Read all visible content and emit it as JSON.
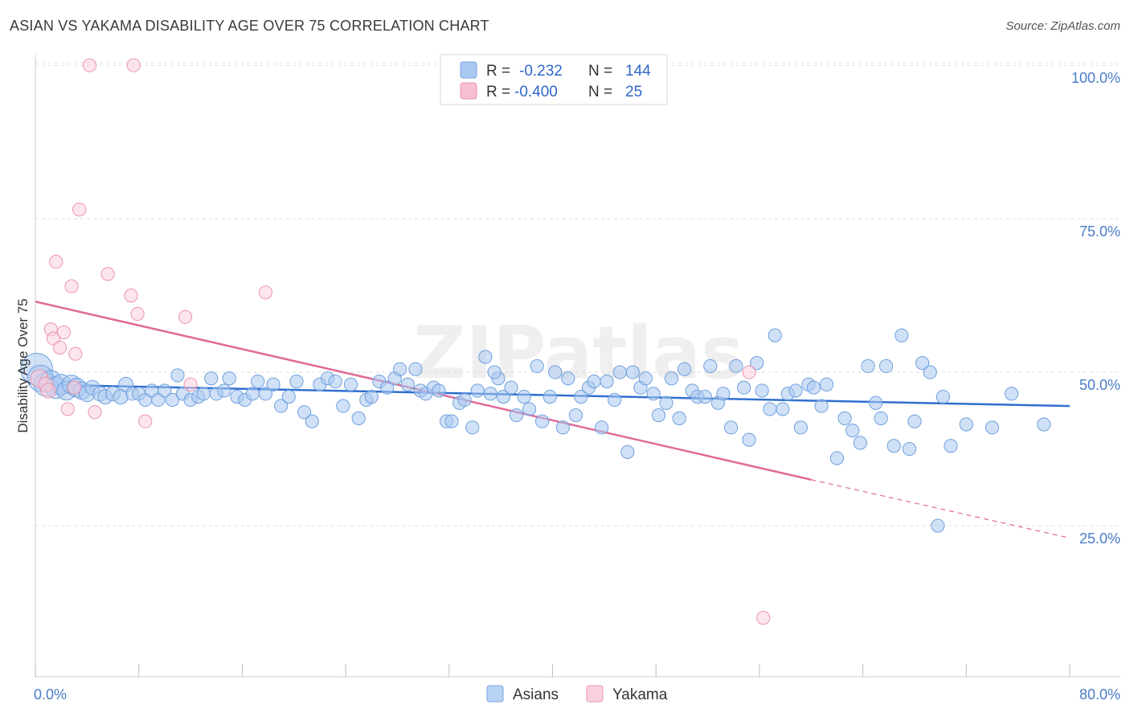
{
  "header": {
    "title": "ASIAN VS YAKAMA DISABILITY AGE OVER 75 CORRELATION CHART",
    "source": "Source: ZipAtlas.com"
  },
  "watermark": "ZIPatlas",
  "legend": {
    "rows": [
      {
        "r_label": "R =",
        "r_value": "-0.232",
        "n_label": "N =",
        "n_value": "144",
        "color": "#a9c8f0",
        "stroke": "#7aa6e0"
      },
      {
        "r_label": "R =",
        "r_value": "-0.400",
        "n_label": "N =",
        "n_value": "25",
        "color": "#f7bfd0",
        "stroke": "#e995b0"
      }
    ]
  },
  "bottom_legend": [
    {
      "label": "Asians",
      "color": "#b9d3f5",
      "stroke": "#7aa6e0"
    },
    {
      "label": "Yakama",
      "color": "#fbd0dd",
      "stroke": "#e995b0"
    }
  ],
  "chart_data": {
    "type": "scatter",
    "title": "ASIAN VS YAKAMA DISABILITY AGE OVER 75 CORRELATION CHART",
    "xlabel": "",
    "ylabel": "Disability Age Over 75",
    "xlim": [
      0,
      80
    ],
    "ylim": [
      0,
      105
    ],
    "x_tick_labels": [
      "0.0%",
      "80.0%"
    ],
    "y_ticks": [
      25,
      50,
      75,
      100
    ],
    "y_tick_labels": [
      "25.0%",
      "50.0%",
      "75.0%",
      "100.0%"
    ],
    "grid": true,
    "series": [
      {
        "name": "Asians",
        "color": "#a9c8f0",
        "stroke": "#6f9fdc",
        "trend": {
          "x0": 0,
          "y0": 48.0,
          "x1": 80,
          "y1": 44.5,
          "color": "#2f6fd0"
        },
        "points": [
          [
            0.1,
            50.5,
            2.2
          ],
          [
            0.4,
            49,
            1.8
          ],
          [
            0.8,
            48,
            1.6
          ],
          [
            1.2,
            48.5,
            1.5
          ],
          [
            1.6,
            47.5,
            1.5
          ],
          [
            2.0,
            48,
            1.4
          ],
          [
            2.4,
            47,
            1.3
          ],
          [
            2.8,
            48,
            1.3
          ],
          [
            3.2,
            47.5,
            1.3
          ],
          [
            3.6,
            47,
            1.2
          ],
          [
            4.0,
            46.5,
            1.1
          ],
          [
            4.4,
            47.5,
            1.0
          ],
          [
            5.0,
            46.5,
            1.0
          ],
          [
            5.4,
            46,
            1.0
          ],
          [
            6.0,
            46.5,
            1.0
          ],
          [
            6.6,
            46,
            1.0
          ],
          [
            7.0,
            48,
            1.0
          ],
          [
            7.5,
            46.5,
            0.9
          ],
          [
            8.0,
            46.5,
            0.9
          ],
          [
            8.5,
            45.5,
            0.9
          ],
          [
            9.0,
            47,
            0.9
          ],
          [
            9.5,
            45.5,
            0.9
          ],
          [
            10.0,
            47,
            0.9
          ],
          [
            10.6,
            45.5,
            0.9
          ],
          [
            11.0,
            49.5,
            0.9
          ],
          [
            11.4,
            46.5,
            0.9
          ],
          [
            12.0,
            45.5,
            0.9
          ],
          [
            12.6,
            46,
            0.9
          ],
          [
            13.0,
            46.5,
            0.9
          ],
          [
            13.6,
            49,
            0.9
          ],
          [
            14.0,
            46.5,
            0.9
          ],
          [
            14.6,
            47,
            0.9
          ],
          [
            15.0,
            49,
            0.9
          ],
          [
            15.6,
            46,
            0.9
          ],
          [
            16.2,
            45.5,
            0.9
          ],
          [
            16.8,
            46.5,
            0.9
          ],
          [
            17.2,
            48.5,
            0.9
          ],
          [
            17.8,
            46.5,
            0.9
          ],
          [
            18.4,
            48,
            0.9
          ],
          [
            19.0,
            44.5,
            0.9
          ],
          [
            19.6,
            46,
            0.9
          ],
          [
            20.2,
            48.5,
            0.9
          ],
          [
            20.8,
            43.5,
            0.9
          ],
          [
            21.4,
            42,
            0.9
          ],
          [
            22.0,
            48,
            0.9
          ],
          [
            22.6,
            49,
            0.9
          ],
          [
            23.2,
            48.5,
            0.9
          ],
          [
            23.8,
            44.5,
            0.9
          ],
          [
            24.4,
            48,
            0.9
          ],
          [
            25.0,
            42.5,
            0.9
          ],
          [
            25.6,
            45.5,
            0.9
          ],
          [
            26.0,
            46,
            0.9
          ],
          [
            26.6,
            48.5,
            0.9
          ],
          [
            27.2,
            47.5,
            0.9
          ],
          [
            27.8,
            49,
            0.9
          ],
          [
            28.2,
            50.5,
            0.9
          ],
          [
            28.8,
            48,
            0.9
          ],
          [
            29.4,
            50.5,
            0.9
          ],
          [
            29.8,
            47,
            0.9
          ],
          [
            30.2,
            46.5,
            0.9
          ],
          [
            30.8,
            47.5,
            0.9
          ],
          [
            31.2,
            47,
            0.9
          ],
          [
            31.8,
            42,
            0.9
          ],
          [
            32.2,
            42,
            0.9
          ],
          [
            32.8,
            45,
            0.9
          ],
          [
            33.2,
            45.5,
            0.9
          ],
          [
            33.8,
            41,
            0.9
          ],
          [
            34.2,
            47,
            0.9
          ],
          [
            34.8,
            52.5,
            0.9
          ],
          [
            35.2,
            46.5,
            0.9
          ],
          [
            35.8,
            49,
            0.9
          ],
          [
            36.2,
            46,
            0.9
          ],
          [
            36.8,
            47.5,
            0.9
          ],
          [
            37.2,
            43,
            0.9
          ],
          [
            37.8,
            46,
            0.9
          ],
          [
            38.2,
            44,
            0.9
          ],
          [
            38.8,
            51,
            0.9
          ],
          [
            39.2,
            42,
            0.9
          ],
          [
            39.8,
            46,
            0.9
          ],
          [
            40.2,
            50,
            0.9
          ],
          [
            40.8,
            41,
            0.9
          ],
          [
            41.2,
            49,
            0.9
          ],
          [
            41.8,
            43,
            0.9
          ],
          [
            42.2,
            46,
            0.9
          ],
          [
            42.8,
            47.5,
            0.9
          ],
          [
            43.2,
            48.5,
            0.9
          ],
          [
            43.8,
            41,
            0.9
          ],
          [
            44.2,
            48.5,
            0.9
          ],
          [
            44.8,
            45.5,
            0.9
          ],
          [
            45.2,
            50,
            0.9
          ],
          [
            45.8,
            37,
            0.9
          ],
          [
            46.2,
            50,
            0.9
          ],
          [
            46.8,
            47.5,
            0.9
          ],
          [
            47.2,
            49,
            0.9
          ],
          [
            47.8,
            46.5,
            0.9
          ],
          [
            48.2,
            43,
            0.9
          ],
          [
            48.8,
            45,
            0.9
          ],
          [
            49.2,
            49,
            0.9
          ],
          [
            49.8,
            42.5,
            0.9
          ],
          [
            50.2,
            50.5,
            0.9
          ],
          [
            50.8,
            47,
            0.9
          ],
          [
            51.2,
            46,
            0.9
          ],
          [
            51.8,
            46,
            0.9
          ],
          [
            52.2,
            51,
            0.9
          ],
          [
            52.8,
            45,
            0.9
          ],
          [
            53.2,
            46.5,
            0.9
          ],
          [
            53.8,
            41,
            0.9
          ],
          [
            54.2,
            51,
            0.9
          ],
          [
            54.8,
            47.5,
            0.9
          ],
          [
            55.2,
            39,
            0.9
          ],
          [
            55.8,
            51.5,
            0.9
          ],
          [
            56.2,
            47,
            0.9
          ],
          [
            56.8,
            44,
            0.9
          ],
          [
            57.2,
            56,
            0.9
          ],
          [
            57.8,
            44,
            0.9
          ],
          [
            58.2,
            46.5,
            0.9
          ],
          [
            58.8,
            47,
            0.9
          ],
          [
            59.2,
            41,
            0.9
          ],
          [
            59.8,
            48,
            0.9
          ],
          [
            60.2,
            47.5,
            0.9
          ],
          [
            60.8,
            44.5,
            0.9
          ],
          [
            61.2,
            48,
            0.9
          ],
          [
            62.0,
            36,
            0.9
          ],
          [
            62.6,
            42.5,
            0.9
          ],
          [
            63.2,
            40.5,
            0.9
          ],
          [
            63.8,
            38.5,
            0.9
          ],
          [
            64.4,
            51,
            0.9
          ],
          [
            65.0,
            45,
            0.9
          ],
          [
            65.4,
            42.5,
            0.9
          ],
          [
            65.8,
            51,
            0.9
          ],
          [
            66.4,
            38,
            0.9
          ],
          [
            67.0,
            56,
            0.9
          ],
          [
            67.6,
            37.5,
            0.9
          ],
          [
            68.0,
            42,
            0.9
          ],
          [
            68.6,
            51.5,
            0.9
          ],
          [
            69.2,
            50,
            0.9
          ],
          [
            69.8,
            25,
            0.9
          ],
          [
            70.2,
            46,
            0.9
          ],
          [
            70.8,
            38,
            0.9
          ],
          [
            72.0,
            41.5,
            0.9
          ],
          [
            74.0,
            41,
            0.9
          ],
          [
            75.5,
            46.5,
            0.9
          ],
          [
            78.0,
            41.5,
            0.9
          ],
          [
            35.5,
            50,
            0.9
          ]
        ]
      },
      {
        "name": "Yakama",
        "color": "#fbd0dd",
        "stroke": "#e995b0",
        "trend": {
          "x0": 0,
          "y0": 61.5,
          "x1": 60,
          "y1": 32.5,
          "x_dash_end": 80,
          "y_dash_end": 23.0,
          "color": "#e06a9a"
        },
        "points": [
          [
            0.3,
            49,
            1.2
          ],
          [
            0.8,
            48,
            1.0
          ],
          [
            1.2,
            57,
            0.9
          ],
          [
            1.4,
            55.5,
            0.9
          ],
          [
            1.6,
            68,
            0.9
          ],
          [
            1.9,
            54,
            0.9
          ],
          [
            2.2,
            56.5,
            0.9
          ],
          [
            2.5,
            44,
            0.9
          ],
          [
            2.8,
            64,
            0.9
          ],
          [
            3.1,
            53,
            0.9
          ],
          [
            3.4,
            76.5,
            0.9
          ],
          [
            4.2,
            100,
            0.9
          ],
          [
            4.6,
            43.5,
            0.9
          ],
          [
            5.6,
            66,
            0.9
          ],
          [
            7.4,
            62.5,
            0.9
          ],
          [
            7.6,
            100,
            0.9
          ],
          [
            7.9,
            59.5,
            0.9
          ],
          [
            8.5,
            42,
            0.9
          ],
          [
            11.6,
            59,
            0.9
          ],
          [
            12.0,
            48,
            0.9
          ],
          [
            17.8,
            63,
            0.9
          ],
          [
            55.2,
            50,
            0.9
          ],
          [
            56.3,
            10,
            0.9
          ],
          [
            1.0,
            47,
            1.0
          ],
          [
            3.0,
            47.5,
            0.9
          ]
        ]
      }
    ]
  }
}
